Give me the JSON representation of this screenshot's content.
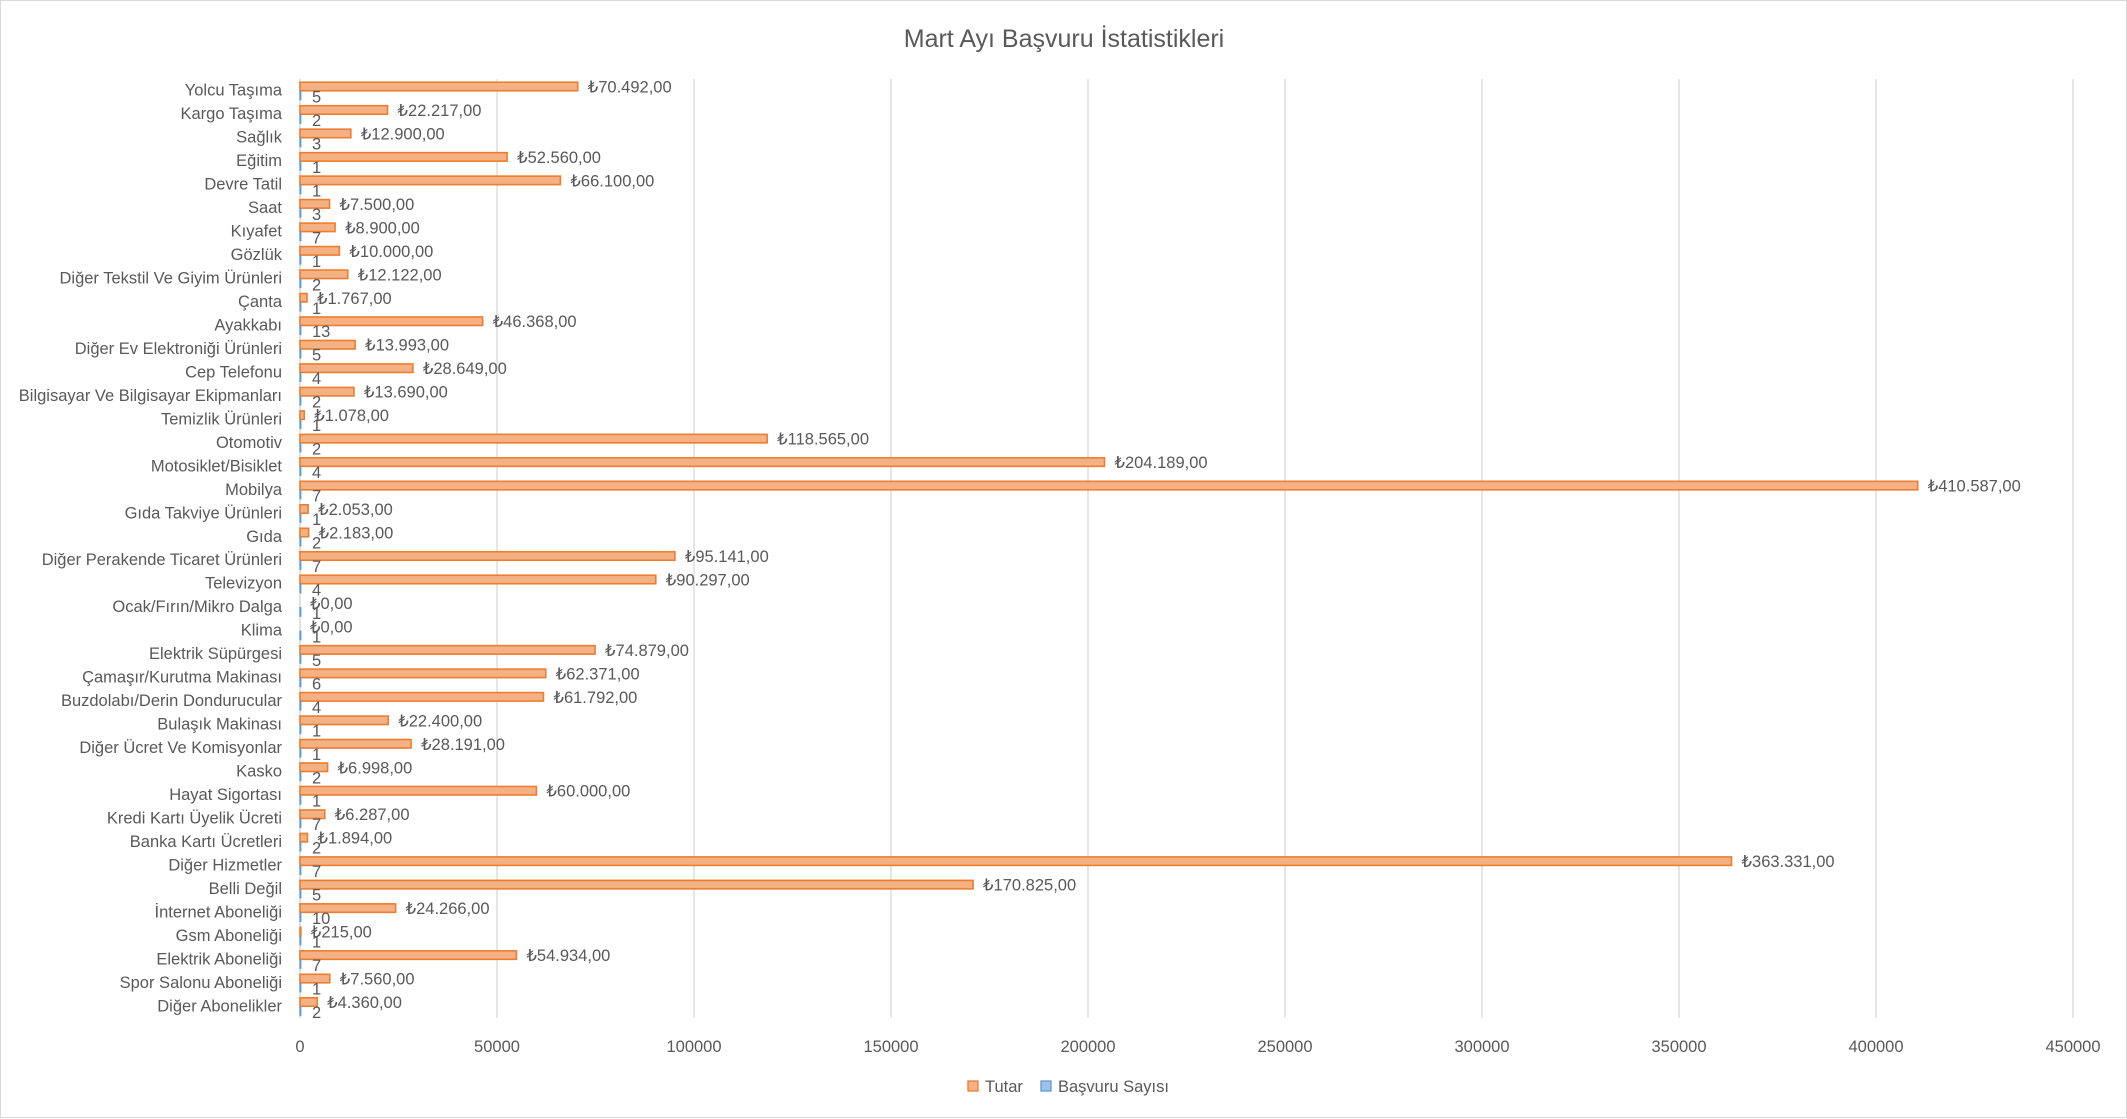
{
  "chart_data": {
    "type": "bar",
    "orientation": "horizontal",
    "title": "Mart Ayı Başvuru İstatistikleri",
    "xlim": [
      0,
      450000
    ],
    "xticks": [
      0,
      50000,
      100000,
      150000,
      200000,
      250000,
      300000,
      350000,
      400000,
      450000
    ],
    "grid": true,
    "legend_position": "bottom",
    "categories": [
      "Yolcu Taşıma",
      "Kargo Taşıma",
      "Sağlık",
      "Eğitim",
      "Devre Tatil",
      "Saat",
      "Kıyafet",
      "Gözlük",
      "Diğer Tekstil Ve Giyim Ürünleri",
      "Çanta",
      "Ayakkabı",
      "Diğer Ev Elektroniği Ürünleri",
      "Cep Telefonu",
      "Bilgisayar Ve Bilgisayar Ekipmanları",
      "Temizlik Ürünleri",
      "Otomotiv",
      "Motosiklet/Bisiklet",
      "Mobilya",
      "Gıda Takviye Ürünleri",
      "Gıda",
      "Diğer Perakende Ticaret Ürünleri",
      "Televizyon",
      "Ocak/Fırın/Mikro Dalga",
      "Klima",
      "Elektrik Süpürgesi",
      "Çamaşır/Kurutma Makinası",
      "Buzdolabı/Derin Dondurucular",
      "Bulaşık Makinası",
      "Diğer Ücret Ve Komisyonlar",
      "Kasko",
      "Hayat Sigortası",
      "Kredi Kartı Üyelik Ücreti",
      "Banka Kartı Ücretleri",
      "Diğer Hizmetler",
      "Belli Değil",
      "İnternet Aboneliği",
      "Gsm Aboneliği",
      "Elektrik Aboneliği",
      "Spor Salonu Aboneliği",
      "Diğer Abonelikler"
    ],
    "series": [
      {
        "name": "Tutar",
        "color": "#f4b183",
        "border": "#ed7d31",
        "values": [
          70492,
          22217,
          12900,
          52560,
          66100,
          7500,
          8900,
          10000,
          12122,
          1767,
          46368,
          13993,
          28649,
          13690,
          1078,
          118565,
          204189,
          410587,
          2053,
          2183,
          95141,
          90297,
          0,
          0,
          74879,
          62371,
          61792,
          22400,
          28191,
          6998,
          60000,
          6287,
          1894,
          363331,
          170825,
          24266,
          215,
          54934,
          7560,
          4360
        ],
        "labels": [
          "₺70.492,00",
          "₺22.217,00",
          "₺12.900,00",
          "₺52.560,00",
          "₺66.100,00",
          "₺7.500,00",
          "₺8.900,00",
          "₺10.000,00",
          "₺12.122,00",
          "₺1.767,00",
          "₺46.368,00",
          "₺13.993,00",
          "₺28.649,00",
          "₺13.690,00",
          "₺1.078,00",
          "₺118.565,00",
          "₺204.189,00",
          "₺410.587,00",
          "₺2.053,00",
          "₺2.183,00",
          "₺95.141,00",
          "₺90.297,00",
          "₺0,00",
          "₺0,00",
          "₺74.879,00",
          "₺62.371,00",
          "₺61.792,00",
          "₺22.400,00",
          "₺28.191,00",
          "₺6.998,00",
          "₺60.000,00",
          "₺6.287,00",
          "₺1.894,00",
          "₺363.331,00",
          "₺170.825,00",
          "₺24.266,00",
          "₺215,00",
          "₺54.934,00",
          "₺7.560,00",
          "₺4.360,00"
        ]
      },
      {
        "name": "Başvuru Sayısı",
        "color": "#9dc3e6",
        "border": "#5b9bd5",
        "values": [
          5,
          2,
          3,
          1,
          1,
          3,
          7,
          1,
          2,
          1,
          13,
          5,
          4,
          2,
          1,
          2,
          4,
          7,
          1,
          2,
          7,
          4,
          1,
          1,
          5,
          6,
          4,
          1,
          1,
          2,
          1,
          7,
          2,
          7,
          5,
          10,
          1,
          7,
          1,
          2
        ]
      }
    ]
  }
}
